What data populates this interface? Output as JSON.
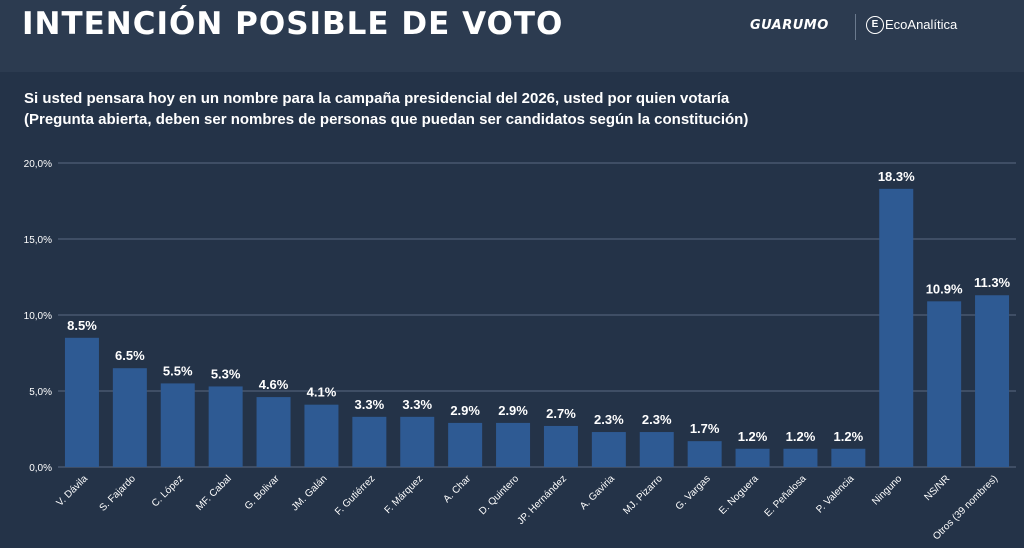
{
  "header": {
    "title": "INTENCIÓN POSIBLE DE VOTO",
    "brand_primary": "GUARUMO",
    "brand_secondary": "EcoAnalítica"
  },
  "subtitle": {
    "line1": "Si usted pensara hoy en un nombre para la campaña presidencial del 2026, usted por quien votaría",
    "line2": "(Pregunta abierta, deben ser nombres de personas que puedan ser candidatos según la constitución)"
  },
  "colors": {
    "background": "#2b3a50",
    "bar": "#2e5a93",
    "grid": "#5a6a82",
    "text": "#ffffff"
  },
  "chart_data": {
    "type": "bar",
    "categories": [
      "V. Dávila",
      "S. Fajardo",
      "C. López",
      "MF. Cabal",
      "G. Bolivar",
      "JM. Galán",
      "F. Gutiérrez",
      "F. Márquez",
      "A. Char",
      "D. Quintero",
      "JP. Hernández",
      "A. Gaviria",
      "MJ. Pizarro",
      "G. Vargas",
      "E. Noguera",
      "E. Peñalosa",
      "P. Valencia",
      "Ninguno",
      "NS/NR",
      "Otros (39 nombres)"
    ],
    "values": [
      8.5,
      6.5,
      5.5,
      5.3,
      4.6,
      4.1,
      3.3,
      3.3,
      2.9,
      2.9,
      2.7,
      2.3,
      2.3,
      1.7,
      1.2,
      1.2,
      1.2,
      18.3,
      10.9,
      11.3
    ],
    "data_labels": [
      "8.5%",
      "6.5%",
      "5.5%",
      "5.3%",
      "4.6%",
      "4.1%",
      "3.3%",
      "3.3%",
      "2.9%",
      "2.9%",
      "2.7%",
      "2.3%",
      "2.3%",
      "1.7%",
      "1.2%",
      "1.2%",
      "1.2%",
      "18.3%",
      "10.9%",
      "11.3%"
    ],
    "ylim": [
      0,
      20
    ],
    "yticks": [
      0,
      5,
      10,
      15,
      20
    ],
    "ytick_labels": [
      "0,0%",
      "5,0%",
      "10,0%",
      "15,0%",
      "20,0%"
    ],
    "grid": true,
    "legend": "none"
  }
}
